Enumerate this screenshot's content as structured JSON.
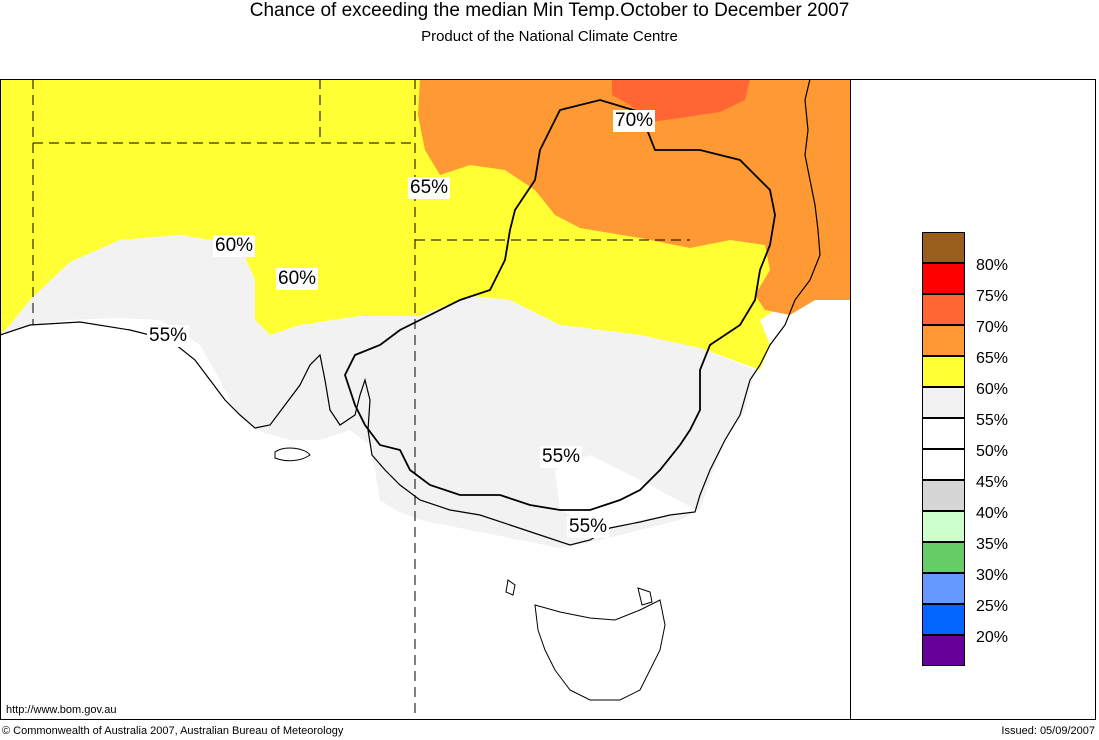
{
  "header": {
    "title": "Chance of exceeding the median Min Temp.October to December 2007",
    "subtitle": "Product of the National Climate Centre"
  },
  "colors": {
    "c80": "#9a5e1c",
    "c75": "#ff0000",
    "c70": "#ff6633",
    "c65": "#ff9933",
    "c60": "#ffff33",
    "c55": "#f2f2f2",
    "c50": "#ffffff",
    "c45": "#ffffff",
    "c40": "#d6d6d6",
    "c35": "#ccffcc",
    "c30": "#66cc66",
    "c25": "#6699ff",
    "c20": "#0066ff",
    "c15": "#660099"
  },
  "legend": {
    "labels": [
      "80%",
      "75%",
      "70%",
      "65%",
      "60%",
      "55%",
      "50%",
      "45%",
      "40%",
      "35%",
      "30%",
      "25%",
      "20%"
    ]
  },
  "map": {
    "labels": {
      "l70": "70%",
      "l65": "65%",
      "l60a": "60%",
      "l60b": "60%",
      "l55a": "55%",
      "l55b": "55%",
      "l55c": "55%"
    }
  },
  "footer": {
    "url": "http://www.bom.gov.au",
    "copyright": "© Commonwealth of Australia 2007, Australian Bureau of Meteorology",
    "issued": "Issued: 05/09/2007"
  }
}
